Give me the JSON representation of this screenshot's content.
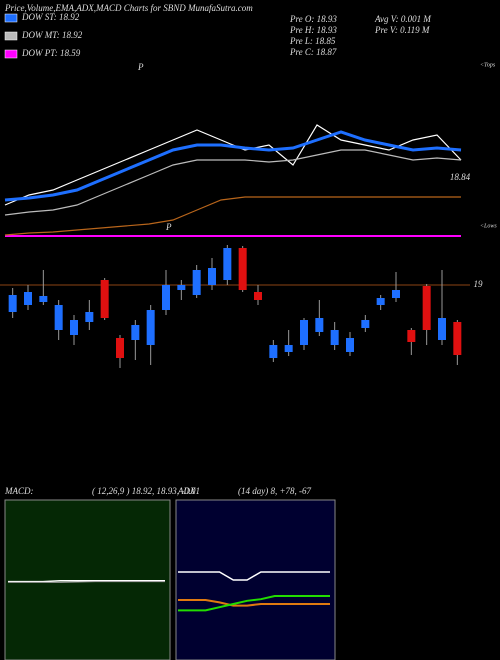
{
  "chart_data": [
    {
      "type": "line",
      "title": "Price,Volume,EMA,ADX,MACD Charts for SBND MunafaSutra.com",
      "info": [
        "Pre  O: 18.93",
        "Avg V: 0.001 M",
        "Pre  H: 18.93",
        "Pre  V: 0.119 M",
        "Pre  L: 18.85",
        "Pre  C: 18.87"
      ],
      "annotations": [
        "<Tops",
        "<Lows",
        "P",
        "P"
      ],
      "ylim": [
        18.625,
        19.525
      ],
      "yticks": [
        18.84
      ],
      "series": [
        {
          "color": "#ffffff",
          "values": [
            18.8,
            18.85,
            18.875,
            18.925,
            18.975,
            19.025,
            19.075,
            19.125,
            19.175,
            19.125,
            19.075,
            19.1,
            19.0,
            19.2,
            19.125,
            19.1,
            19.075,
            19.125,
            19.15,
            19.025
          ]
        },
        {
          "name": "DOW ST: 18.92",
          "color": "#1e6fff",
          "values": [
            18.825,
            18.835,
            18.85,
            18.875,
            18.925,
            18.975,
            19.025,
            19.075,
            19.1,
            19.1,
            19.085,
            19.075,
            19.085,
            19.125,
            19.165,
            19.125,
            19.1,
            19.075,
            19.085,
            19.075
          ]
        },
        {
          "name": "DOW MT: 18.92",
          "color": "#bbbbbb",
          "values": [
            18.75,
            18.765,
            18.775,
            18.8,
            18.85,
            18.9,
            18.95,
            19.0,
            19.025,
            19.025,
            19.025,
            19.015,
            19.025,
            19.05,
            19.075,
            19.075,
            19.05,
            19.025,
            19.035,
            19.025
          ]
        },
        {
          "name": "DOW PT: 18.59",
          "color": "#ff00ff",
          "values": [
            18.645,
            18.645,
            18.645,
            18.645,
            18.645,
            18.645,
            18.645,
            18.645,
            18.645,
            18.645,
            18.645,
            18.645,
            18.645,
            18.645,
            18.645,
            18.645,
            18.645,
            18.645,
            18.645,
            18.645
          ]
        },
        {
          "color": "#b8651b",
          "values": [
            18.65,
            18.66,
            18.665,
            18.675,
            18.685,
            18.695,
            18.705,
            18.725,
            18.775,
            18.825,
            18.84,
            18.84,
            18.84,
            18.84,
            18.84,
            18.84,
            18.84,
            18.84,
            18.84,
            18.84
          ]
        }
      ]
    },
    {
      "type": "candlestick",
      "ylim": [
        18.55,
        19.2
      ],
      "yticks": [
        19
      ],
      "up_color": "#1e6fff",
      "down_color": "#e01010",
      "open": [
        18.865,
        18.9,
        18.915,
        18.775,
        18.75,
        18.815,
        19.025,
        18.735,
        18.725,
        18.7,
        18.875,
        18.975,
        18.95,
        19.0,
        19.025,
        19.185,
        18.965,
        18.635,
        18.665,
        18.7,
        18.765,
        18.7,
        18.665,
        18.785,
        18.9,
        18.935,
        18.775,
        18.995,
        18.725,
        18.815
      ],
      "high": [
        18.985,
        19.0,
        19.075,
        18.925,
        18.85,
        18.925,
        19.035,
        18.75,
        18.825,
        18.9,
        19.075,
        19.025,
        19.1,
        19.135,
        19.2,
        19.195,
        19.0,
        18.725,
        18.775,
        18.835,
        18.925,
        18.815,
        18.765,
        18.85,
        18.95,
        19.065,
        18.785,
        19.005,
        19.075,
        18.825
      ],
      "low": [
        18.835,
        18.875,
        18.9,
        18.725,
        18.7,
        18.775,
        18.825,
        18.585,
        18.625,
        18.6,
        18.85,
        18.925,
        18.935,
        18.975,
        19.0,
        18.965,
        18.9,
        18.615,
        18.645,
        18.675,
        18.745,
        18.675,
        18.645,
        18.765,
        18.875,
        18.915,
        18.65,
        18.7,
        18.7,
        18.6
      ],
      "close": [
        18.95,
        18.965,
        18.945,
        18.9,
        18.825,
        18.865,
        18.835,
        18.635,
        18.8,
        18.875,
        19.0,
        19.0,
        19.075,
        19.085,
        19.185,
        18.975,
        18.925,
        18.7,
        18.7,
        18.825,
        18.835,
        18.775,
        18.735,
        18.825,
        18.935,
        18.975,
        18.715,
        18.775,
        18.835,
        18.65
      ]
    },
    {
      "type": "line",
      "title": "MACD:",
      "subtitle": "( 12,26,9 ) 18.92, 18.93, -0.01",
      "ylim": [
        -1,
        1
      ],
      "series": [
        {
          "color": "#ffffff",
          "values": [
            -0.02,
            -0.02,
            -0.02,
            -0.01,
            -0.01,
            -0.01,
            -0.01,
            -0.01,
            -0.01,
            -0.01
          ]
        },
        {
          "color": "#999999",
          "values": [
            -0.03,
            -0.03,
            -0.03,
            -0.03,
            -0.025,
            -0.02,
            -0.02,
            -0.02,
            -0.02,
            -0.02
          ]
        }
      ]
    },
    {
      "type": "line",
      "title": "ADX",
      "subtitle": "(14 day) 8, +78, -67",
      "ylim": [
        0,
        100
      ],
      "series": [
        {
          "color": "#ffffff",
          "values": [
            55,
            55,
            55,
            55,
            50,
            50,
            55,
            55,
            55,
            55,
            55,
            55
          ]
        },
        {
          "color": "#e07a10",
          "values": [
            37.5,
            37.5,
            37.5,
            36,
            34,
            34,
            35,
            35,
            35,
            35,
            35,
            35
          ]
        },
        {
          "color": "#22dd00",
          "values": [
            31,
            31,
            31,
            33,
            35,
            37,
            38,
            40,
            40,
            40,
            40,
            40
          ]
        }
      ]
    }
  ]
}
